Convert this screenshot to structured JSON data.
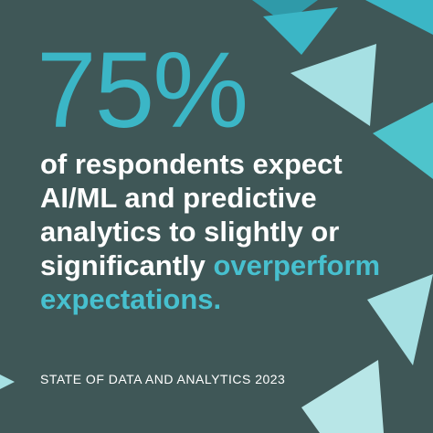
{
  "colors": {
    "background": "#3f5757",
    "accent": "#3bb6c6",
    "accent_light": "#9edde3",
    "text": "#ffffff"
  },
  "stat": {
    "value": "75%"
  },
  "headline": {
    "line1": "of respondents expect",
    "line2": "AI/ML and predictive",
    "line3": "analytics to slightly or",
    "line4_plain": "significantly ",
    "line4_accent": "overperform",
    "line5_accent": "expectations."
  },
  "footer": {
    "source": "STATE OF DATA AND ANALYTICS 2023"
  },
  "decorations": {
    "shape": "triangles"
  }
}
